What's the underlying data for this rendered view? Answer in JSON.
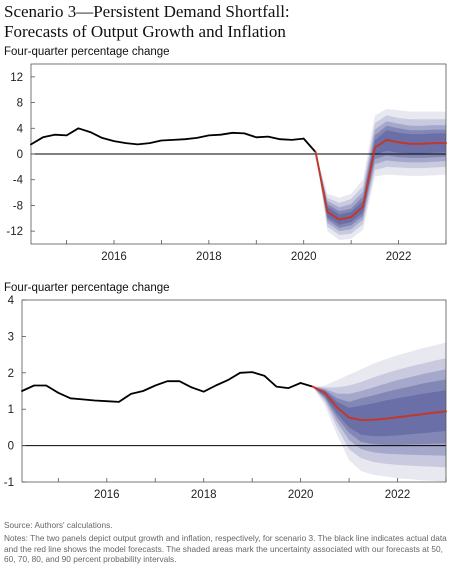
{
  "title_line1": "Scenario 3—Persistent Demand Shortfall:",
  "title_line2": "Forecasts of Output Growth and Inflation",
  "colors": {
    "actual": "#000000",
    "forecast": "#c0392b",
    "band": "#5a5f9e"
  },
  "chart_data": [
    {
      "type": "line",
      "ylabel": "Four-quarter percentage change",
      "ylim": [
        -14,
        14
      ],
      "yticks": [
        12,
        8,
        4,
        0,
        -4,
        -8,
        -12
      ],
      "xlim": [
        2014.25,
        2023.0
      ],
      "xticks": [
        2016,
        2018,
        2020,
        2022
      ],
      "grid": false,
      "series": [
        {
          "role": "actual",
          "x": [
            2014.25,
            2014.5,
            2014.75,
            2015.0,
            2015.25,
            2015.5,
            2015.75,
            2016.0,
            2016.25,
            2016.5,
            2016.75,
            2017.0,
            2017.25,
            2017.5,
            2017.75,
            2018.0,
            2018.25,
            2018.5,
            2018.75,
            2019.0,
            2019.25,
            2019.5,
            2019.75,
            2020.0
          ],
          "y": [
            1.5,
            2.6,
            3.0,
            2.9,
            4.0,
            3.4,
            2.5,
            2.0,
            1.7,
            1.5,
            1.7,
            2.1,
            2.2,
            2.3,
            2.5,
            2.9,
            3.0,
            3.3,
            3.2,
            2.6,
            2.7,
            2.3,
            2.2,
            2.4
          ]
        },
        {
          "role": "actual-recent",
          "x": [
            2020.0,
            2020.25
          ],
          "y": [
            2.4,
            0.3
          ]
        },
        {
          "role": "forecast",
          "x": [
            2020.25,
            2020.5,
            2020.75,
            2021.0,
            2021.25,
            2021.5,
            2021.75,
            2022.0,
            2022.25,
            2022.5,
            2022.75,
            2023.0
          ],
          "y": [
            0.3,
            -9.0,
            -10.2,
            -9.8,
            -8.2,
            1.0,
            2.2,
            1.8,
            1.6,
            1.6,
            1.7,
            1.7
          ]
        }
      ],
      "bands": {
        "x": [
          2020.25,
          2020.5,
          2020.75,
          2021.0,
          2021.25,
          2021.5,
          2021.75,
          2022.0,
          2022.25,
          2022.5,
          2022.75,
          2023.0
        ],
        "intervals": [
          {
            "level": 90,
            "lower": [
              0.3,
              -12.0,
              -13.4,
              -13.2,
              -11.8,
              -3.5,
              -3.2,
              -3.3,
              -3.4,
              -3.4,
              -3.3,
              -3.2
            ],
            "upper": [
              0.3,
              -6.2,
              -6.8,
              -6.2,
              -4.0,
              6.0,
              7.0,
              6.8,
              6.6,
              6.6,
              6.6,
              6.6
            ]
          },
          {
            "level": 80,
            "lower": [
              0.3,
              -11.3,
              -12.6,
              -12.4,
              -10.9,
              -2.5,
              -2.0,
              -2.1,
              -2.2,
              -2.2,
              -2.1,
              -2.0
            ],
            "upper": [
              0.3,
              -6.8,
              -7.6,
              -7.0,
              -5.0,
              4.8,
              6.0,
              5.6,
              5.4,
              5.4,
              5.4,
              5.4
            ]
          },
          {
            "level": 70,
            "lower": [
              0.3,
              -10.7,
              -12.0,
              -11.7,
              -10.2,
              -1.6,
              -1.0,
              -1.2,
              -1.3,
              -1.3,
              -1.2,
              -1.1
            ],
            "upper": [
              0.3,
              -7.3,
              -8.3,
              -7.8,
              -5.9,
              3.8,
              5.1,
              4.7,
              4.4,
              4.4,
              4.5,
              4.5
            ]
          },
          {
            "level": 60,
            "lower": [
              0.3,
              -10.2,
              -11.5,
              -11.1,
              -9.6,
              -0.8,
              -0.2,
              -0.5,
              -0.6,
              -0.6,
              -0.5,
              -0.4
            ],
            "upper": [
              0.3,
              -7.8,
              -8.9,
              -8.5,
              -6.6,
              2.9,
              4.4,
              4.0,
              3.7,
              3.7,
              3.8,
              3.8
            ]
          },
          {
            "level": 50,
            "lower": [
              0.3,
              -9.8,
              -11.0,
              -10.6,
              -9.1,
              -0.1,
              0.5,
              0.2,
              0.1,
              0.1,
              0.2,
              0.3
            ],
            "upper": [
              0.3,
              -8.2,
              -9.4,
              -9.0,
              -7.3,
              2.1,
              3.7,
              3.3,
              3.1,
              3.1,
              3.2,
              3.2
            ]
          }
        ]
      }
    },
    {
      "type": "line",
      "ylabel": "Four-quarter percentage change",
      "ylim": [
        -1,
        4
      ],
      "yticks": [
        4,
        3,
        2,
        1,
        0,
        -1
      ],
      "xlim": [
        2014.25,
        2023.0
      ],
      "xticks": [
        2016,
        2018,
        2020,
        2022
      ],
      "grid": false,
      "series": [
        {
          "role": "actual",
          "x": [
            2014.25,
            2014.5,
            2014.75,
            2015.0,
            2015.25,
            2015.5,
            2015.75,
            2016.0,
            2016.25,
            2016.5,
            2016.75,
            2017.0,
            2017.25,
            2017.5,
            2017.75,
            2018.0,
            2018.25,
            2018.5,
            2018.75,
            2019.0,
            2019.25,
            2019.5,
            2019.75,
            2020.0
          ],
          "y": [
            1.5,
            1.65,
            1.65,
            1.45,
            1.3,
            1.27,
            1.24,
            1.22,
            1.2,
            1.42,
            1.5,
            1.65,
            1.77,
            1.77,
            1.6,
            1.48,
            1.65,
            1.8,
            2.0,
            2.02,
            1.92,
            1.62,
            1.58,
            1.72
          ]
        },
        {
          "role": "actual-recent",
          "x": [
            2020.0,
            2020.25
          ],
          "y": [
            1.72,
            1.62
          ]
        },
        {
          "role": "forecast",
          "x": [
            2020.25,
            2020.5,
            2020.75,
            2021.0,
            2021.25,
            2021.5,
            2021.75,
            2022.0,
            2022.25,
            2022.5,
            2022.75,
            2023.0
          ],
          "y": [
            1.62,
            1.45,
            1.05,
            0.77,
            0.7,
            0.71,
            0.74,
            0.78,
            0.82,
            0.86,
            0.9,
            0.94
          ]
        }
      ],
      "bands": {
        "x": [
          2020.25,
          2020.5,
          2020.75,
          2021.0,
          2021.25,
          2021.5,
          2021.75,
          2022.0,
          2022.25,
          2022.5,
          2022.75,
          2023.0
        ],
        "intervals": [
          {
            "level": 90,
            "lower": [
              1.62,
              1.1,
              0.3,
              -0.4,
              -0.7,
              -0.8,
              -0.85,
              -0.9,
              -0.92,
              -0.95,
              -0.97,
              -1.0
            ],
            "upper": [
              1.62,
              1.65,
              1.8,
              1.95,
              2.1,
              2.25,
              2.37,
              2.48,
              2.58,
              2.67,
              2.75,
              2.83
            ]
          },
          {
            "level": 80,
            "lower": [
              1.62,
              1.2,
              0.5,
              -0.1,
              -0.35,
              -0.45,
              -0.5,
              -0.53,
              -0.55,
              -0.57,
              -0.58,
              -0.6
            ],
            "upper": [
              1.62,
              1.6,
              1.6,
              1.65,
              1.75,
              1.87,
              1.98,
              2.08,
              2.17,
              2.25,
              2.33,
              2.4
            ]
          },
          {
            "level": 70,
            "lower": [
              1.62,
              1.27,
              0.65,
              0.15,
              -0.1,
              -0.18,
              -0.22,
              -0.24,
              -0.25,
              -0.26,
              -0.27,
              -0.28
            ],
            "upper": [
              1.62,
              1.56,
              1.43,
              1.42,
              1.5,
              1.6,
              1.7,
              1.8,
              1.88,
              1.96,
              2.03,
              2.1
            ]
          },
          {
            "level": 60,
            "lower": [
              1.62,
              1.32,
              0.78,
              0.35,
              0.1,
              0.04,
              0.02,
              0.02,
              0.03,
              0.04,
              0.05,
              0.06
            ],
            "upper": [
              1.62,
              1.53,
              1.3,
              1.2,
              1.3,
              1.38,
              1.47,
              1.55,
              1.62,
              1.7,
              1.76,
              1.82
            ]
          },
          {
            "level": 50,
            "lower": [
              1.62,
              1.36,
              0.88,
              0.5,
              0.3,
              0.26,
              0.26,
              0.28,
              0.31,
              0.34,
              0.37,
              0.4
            ],
            "upper": [
              1.62,
              1.5,
              1.2,
              1.04,
              1.1,
              1.16,
              1.24,
              1.3,
              1.36,
              1.42,
              1.47,
              1.52
            ]
          }
        ]
      }
    }
  ],
  "source_text": "Source: Authors' calculations.",
  "notes_text": "Notes: The two panels depict output growth and inflation, respectively, for scenario 3. The black line indicates actual data and the red line shows the model forecasts. The shaded areas mark the uncertainty associated with our forecasts at 50, 60, 70, 80, and 90 percent probability intervals."
}
